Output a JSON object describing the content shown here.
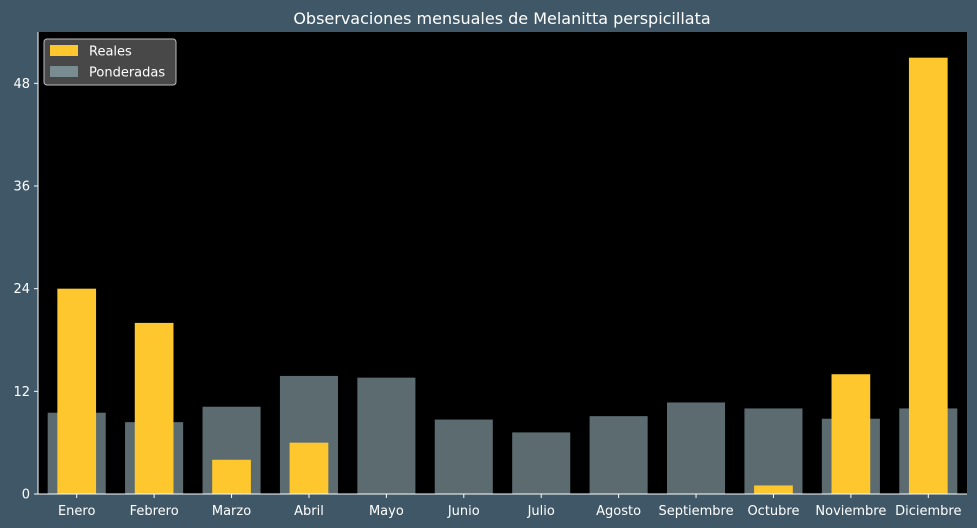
{
  "colors": {
    "page_background": "#3f5766",
    "plot_background": "#000000",
    "reales": "#ffc72e",
    "ponderadas": "#83999f",
    "text": "#ffffff",
    "legend_background": "#555555",
    "legend_border": "#bdbdbd"
  },
  "chart_data": {
    "type": "bar",
    "title": "Observaciones mensuales de Melanitta perspicillata",
    "xlabel": "",
    "ylabel": "",
    "categories": [
      "Enero",
      "Febrero",
      "Marzo",
      "Abril",
      "Mayo",
      "Junio",
      "Julio",
      "Agosto",
      "Septiembre",
      "Octubre",
      "Noviembre",
      "Diciembre"
    ],
    "series": [
      {
        "name": "Reales",
        "values": [
          24,
          20,
          4,
          6,
          0,
          0,
          0,
          0,
          0,
          1,
          14,
          51
        ],
        "color": "#ffc72e",
        "bar_style": "narrow, behind"
      },
      {
        "name": "Ponderadas",
        "values": [
          9.5,
          8.4,
          10.2,
          13.8,
          13.6,
          8.7,
          7.2,
          9.1,
          10.7,
          10,
          8.8,
          10
        ],
        "color": "#83999f",
        "bar_style": "wide, semi-transparent overlay"
      }
    ],
    "ylim": [
      0,
      54
    ],
    "yticks": [
      0,
      12,
      24,
      36,
      48
    ],
    "grid": false,
    "legend": {
      "position": "top-left",
      "entries": [
        "Reales",
        "Ponderadas"
      ]
    }
  }
}
